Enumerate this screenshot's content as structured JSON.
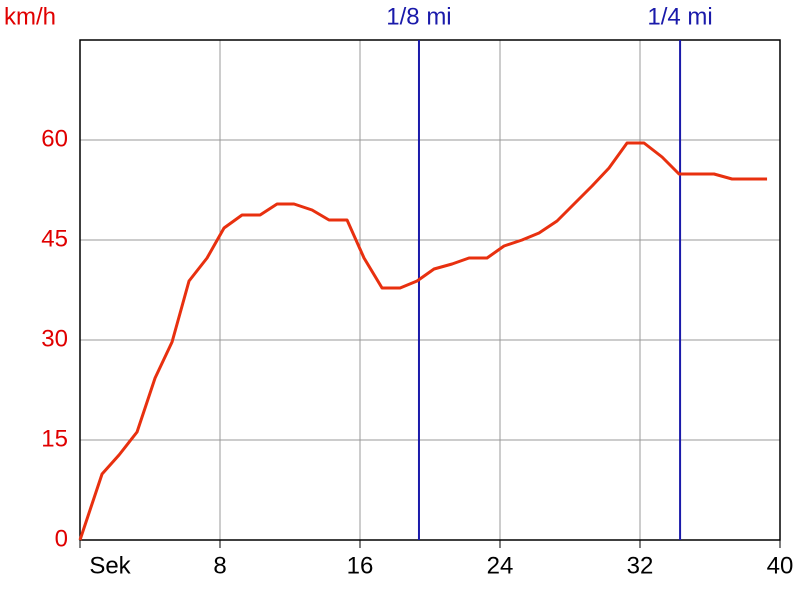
{
  "chart_data": {
    "type": "line",
    "y_label": "km/h",
    "x": [
      0,
      1.26,
      2.23,
      3.26,
      4.29,
      5.26,
      6.23,
      7.26,
      8.23,
      9.26,
      10.29,
      11.26,
      12.23,
      13.26,
      14.23,
      15.26,
      16.23,
      17.26,
      18.29,
      19.26,
      20.23,
      21.26,
      22.23,
      23.26,
      24.23,
      25.26,
      26.23,
      27.26,
      28.23,
      29.26,
      30.23,
      31.26,
      32.23,
      33.26,
      34.23,
      35.26,
      36.23,
      37.26,
      38.23,
      39.26
    ],
    "series": [
      {
        "color": "#e8300f",
        "values": [
          0,
          9.9,
          12.75,
          16.2,
          24.3,
          29.7,
          38.85,
          42.3,
          46.8,
          48.75,
          48.75,
          50.4,
          50.4,
          49.5,
          48,
          48,
          42.3,
          37.8,
          37.8,
          38.85,
          40.65,
          41.4,
          42.3,
          42.3,
          44.1,
          45,
          46.05,
          47.85,
          50.4,
          53.1,
          55.8,
          59.55,
          59.55,
          57.45,
          54.9,
          54.9,
          54.9,
          54.15,
          54.15,
          54.15
        ]
      }
    ],
    "xlim": [
      0,
      40
    ],
    "xticks": [
      {
        "value": 0,
        "label": "Sek"
      },
      8,
      16,
      24,
      32,
      40
    ],
    "ylim": [
      0,
      75
    ],
    "yticks": [
      0,
      15,
      30,
      45,
      60
    ],
    "grid": true,
    "markers": [
      {
        "x": 19.37,
        "label": "1/8 mi",
        "color": "#1a1aaa"
      },
      {
        "x": 34.29,
        "label": "1/4 mi",
        "color": "#1a1aaa"
      }
    ],
    "y_tick_color": "#e00000"
  }
}
